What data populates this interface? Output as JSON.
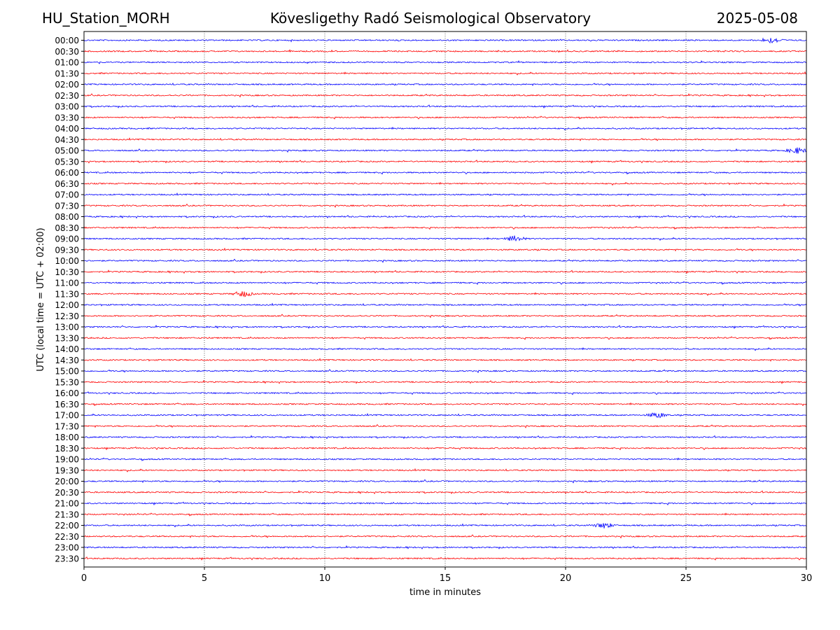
{
  "header": {
    "station": "HU_Station_MORH",
    "title": "Kövesligethy Radó Seismological Observatory",
    "date": "2025-05-08"
  },
  "chart_data": {
    "type": "line",
    "title": "Kövesligethy Radó Seismological Observatory",
    "xlabel": "time in minutes",
    "ylabel": "UTC (local time = UTC + 02:00)",
    "xlim": [
      0,
      30
    ],
    "xticks": [
      0,
      5,
      10,
      15,
      20,
      25,
      30
    ],
    "grid": "vertical dotted at each x tick",
    "colors": {
      "even_rows": "#0000ff",
      "odd_rows": "#ff0000"
    },
    "rows": [
      "00:00",
      "00:30",
      "01:00",
      "01:30",
      "02:00",
      "02:30",
      "03:00",
      "03:30",
      "04:00",
      "04:30",
      "05:00",
      "05:30",
      "06:00",
      "06:30",
      "07:00",
      "07:30",
      "08:00",
      "08:30",
      "09:00",
      "09:30",
      "10:00",
      "10:30",
      "11:00",
      "11:30",
      "12:00",
      "12:30",
      "13:00",
      "13:30",
      "14:00",
      "14:30",
      "15:00",
      "15:30",
      "16:00",
      "16:30",
      "17:00",
      "17:30",
      "18:00",
      "18:30",
      "19:00",
      "19:30",
      "20:00",
      "20:30",
      "21:00",
      "21:30",
      "22:00",
      "22:30",
      "23:00",
      "23:30"
    ],
    "events": [
      {
        "row": "00:00",
        "minute": 28.6
      },
      {
        "row": "05:00",
        "minute": 29.6
      },
      {
        "row": "09:00",
        "minute": 17.9
      },
      {
        "row": "11:30",
        "minute": 6.6
      },
      {
        "row": "17:00",
        "minute": 23.8
      },
      {
        "row": "22:00",
        "minute": 21.6
      }
    ]
  }
}
